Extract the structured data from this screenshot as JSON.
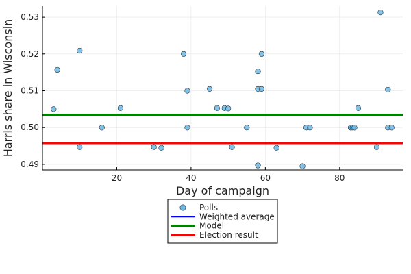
{
  "chart_data": {
    "type": "scatter",
    "title": "",
    "xlabel": "Day of campaign",
    "ylabel": "Harris share in Wisconsin",
    "xlim": [
      0,
      97
    ],
    "ylim": [
      0.4885,
      0.533
    ],
    "xticks": [
      20,
      40,
      60,
      80
    ],
    "xtick_labels": [
      "20",
      "40",
      "60",
      "80"
    ],
    "yticks": [
      0.49,
      0.5,
      0.51,
      0.52,
      0.53
    ],
    "ytick_labels": [
      "0.49",
      "0.50",
      "0.51",
      "0.52",
      "0.53"
    ],
    "grid": true,
    "legend_position": "bottom-outside",
    "series": [
      {
        "name": "Polls",
        "kind": "points",
        "color": "#6cb8e6",
        "points": [
          [
            3,
            0.505
          ],
          [
            4,
            0.5157
          ],
          [
            10,
            0.5209
          ],
          [
            10,
            0.4947
          ],
          [
            16,
            0.5
          ],
          [
            21,
            0.5053
          ],
          [
            30,
            0.4947
          ],
          [
            32,
            0.4945
          ],
          [
            38,
            0.52
          ],
          [
            39,
            0.51
          ],
          [
            39,
            0.5
          ],
          [
            45,
            0.5105
          ],
          [
            47,
            0.5053
          ],
          [
            49,
            0.5053
          ],
          [
            50,
            0.5052
          ],
          [
            51,
            0.4947
          ],
          [
            55,
            0.5
          ],
          [
            58,
            0.5153
          ],
          [
            58,
            0.5105
          ],
          [
            58,
            0.4897
          ],
          [
            59,
            0.52
          ],
          [
            59,
            0.5105
          ],
          [
            63,
            0.4945
          ],
          [
            70,
            0.4895
          ],
          [
            71,
            0.5
          ],
          [
            72,
            0.5
          ],
          [
            83,
            0.5
          ],
          [
            83,
            0.5
          ],
          [
            83.5,
            0.5
          ],
          [
            84,
            0.5
          ],
          [
            85,
            0.5053
          ],
          [
            90,
            0.4947
          ],
          [
            91,
            0.5313
          ],
          [
            93,
            0.5103
          ],
          [
            93,
            0.5
          ],
          [
            94,
            0.5
          ]
        ]
      },
      {
        "name": "Weighted average",
        "kind": "hline",
        "color": "#0000ff",
        "value": 0.5033
      },
      {
        "name": "Model",
        "kind": "hline",
        "color": "#008000",
        "value": 0.5035
      },
      {
        "name": "Election result",
        "kind": "hline",
        "color": "#ff0000",
        "value": 0.4958
      }
    ]
  }
}
